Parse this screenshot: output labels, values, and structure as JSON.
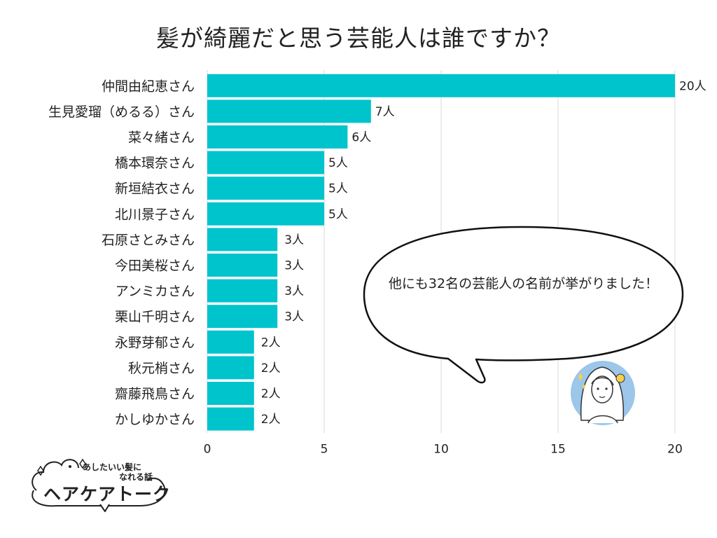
{
  "title": "髪が綺麗だと思う芸能人は誰ですか？",
  "callout": "他にも32名の芸能人の名前が挙がりました！",
  "logo": {
    "line1": "あしたいい髪に",
    "line2": "なれる話",
    "name": "ヘアケアトーク"
  },
  "colors": {
    "bar": "#00C4CC",
    "grid": "#d9d9d9",
    "text": "#222222"
  },
  "chart_data": {
    "type": "bar",
    "orientation": "horizontal",
    "title": "髪が綺麗だと思う芸能人は誰ですか？",
    "categories": [
      "仲間由紀恵さん",
      "生見愛瑠（めるる）さん",
      "菜々緒さん",
      "橋本環奈さん",
      "新垣結衣さん",
      "北川景子さん",
      "石原さとみさん",
      "今田美桜さん",
      "アンミカさん",
      "栗山千明さん",
      "永野芽郁さん",
      "秋元梢さん",
      "齋藤飛鳥さん",
      "かしゆかさん"
    ],
    "values": [
      20,
      7,
      6,
      5,
      5,
      5,
      3,
      3,
      3,
      3,
      2,
      2,
      2,
      2
    ],
    "value_labels": [
      "20人",
      "7人",
      "6人",
      "5人",
      "5人",
      "5人",
      "3人",
      "3人",
      "3人",
      "3人",
      "2人",
      "2人",
      "2人",
      "2人"
    ],
    "xlim": [
      0,
      20
    ],
    "xticks": [
      "0",
      "5",
      "10",
      "15",
      "20"
    ],
    "grid": true,
    "xlabel": "",
    "ylabel": ""
  }
}
